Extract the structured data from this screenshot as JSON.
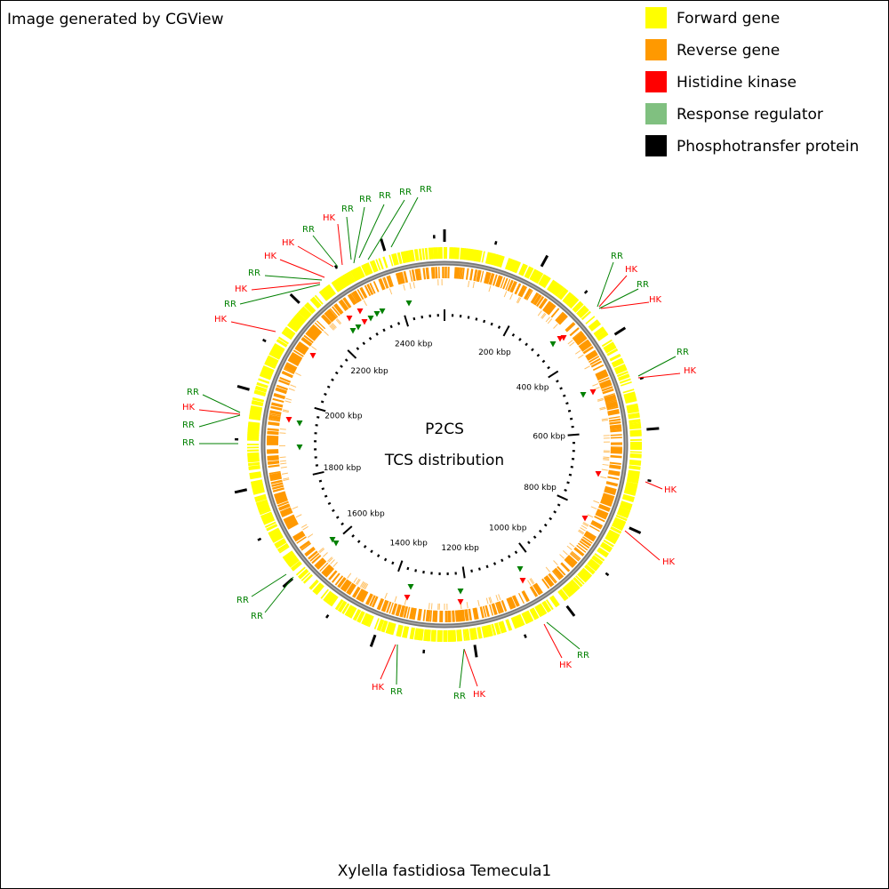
{
  "header": {
    "credit": "Image generated by CGView"
  },
  "legend": [
    {
      "label": "Forward gene",
      "color": "#ffff00"
    },
    {
      "label": "Reverse gene",
      "color": "#ff9900"
    },
    {
      "label": "Histidine kinase",
      "color": "#ff0000"
    },
    {
      "label": "Response regulator",
      "color": "#80c080"
    },
    {
      "label": "Phosphotransfer protein",
      "color": "#000000"
    }
  ],
  "map": {
    "title": "P2CS",
    "subtitle": "TCS distribution",
    "scale_labels": [
      "200 kbp",
      "400 kbp",
      "600 kbp",
      "800 kbp",
      "1000 kbp",
      "1200 kbp",
      "1400 kbp",
      "1600 kbp",
      "1800 kbp",
      "2000 kbp",
      "2200 kbp",
      "2400 kbp"
    ],
    "features": [
      {
        "label": "RR",
        "color": "#008000"
      },
      {
        "label": "RR",
        "color": "#008000"
      },
      {
        "label": "RR",
        "color": "#008000"
      },
      {
        "label": "RR",
        "color": "#008000"
      },
      {
        "label": "RR",
        "color": "#008000"
      },
      {
        "label": "HK",
        "color": "#ff0000"
      },
      {
        "label": "RR",
        "color": "#008000"
      },
      {
        "label": "HK",
        "color": "#ff0000"
      },
      {
        "label": "HK",
        "color": "#ff0000"
      },
      {
        "label": "RR",
        "color": "#008000"
      },
      {
        "label": "HK",
        "color": "#ff0000"
      },
      {
        "label": "RR",
        "color": "#008000"
      },
      {
        "label": "HK",
        "color": "#ff0000"
      },
      {
        "label": "RR",
        "color": "#008000"
      },
      {
        "label": "HK",
        "color": "#ff0000"
      },
      {
        "label": "RR",
        "color": "#008000"
      },
      {
        "label": "HK",
        "color": "#ff0000"
      },
      {
        "label": "RR",
        "color": "#008000"
      },
      {
        "label": "HK",
        "color": "#ff0000"
      },
      {
        "label": "HK",
        "color": "#ff0000"
      },
      {
        "label": "HK",
        "color": "#ff0000"
      },
      {
        "label": "RR",
        "color": "#008000"
      },
      {
        "label": "HK",
        "color": "#ff0000"
      },
      {
        "label": "HK",
        "color": "#ff0000"
      },
      {
        "label": "RR",
        "color": "#008000"
      },
      {
        "label": "RR",
        "color": "#008000"
      },
      {
        "label": "HK",
        "color": "#ff0000"
      },
      {
        "label": "RR",
        "color": "#008000"
      },
      {
        "label": "RR",
        "color": "#008000"
      },
      {
        "label": "RR",
        "color": "#008000"
      },
      {
        "label": "HK",
        "color": "#ff0000"
      },
      {
        "label": "RR",
        "color": "#008000"
      },
      {
        "label": "RR",
        "color": "#008000"
      }
    ]
  },
  "footer": {
    "organism": "Xylella fastidiosa Temecula1"
  }
}
